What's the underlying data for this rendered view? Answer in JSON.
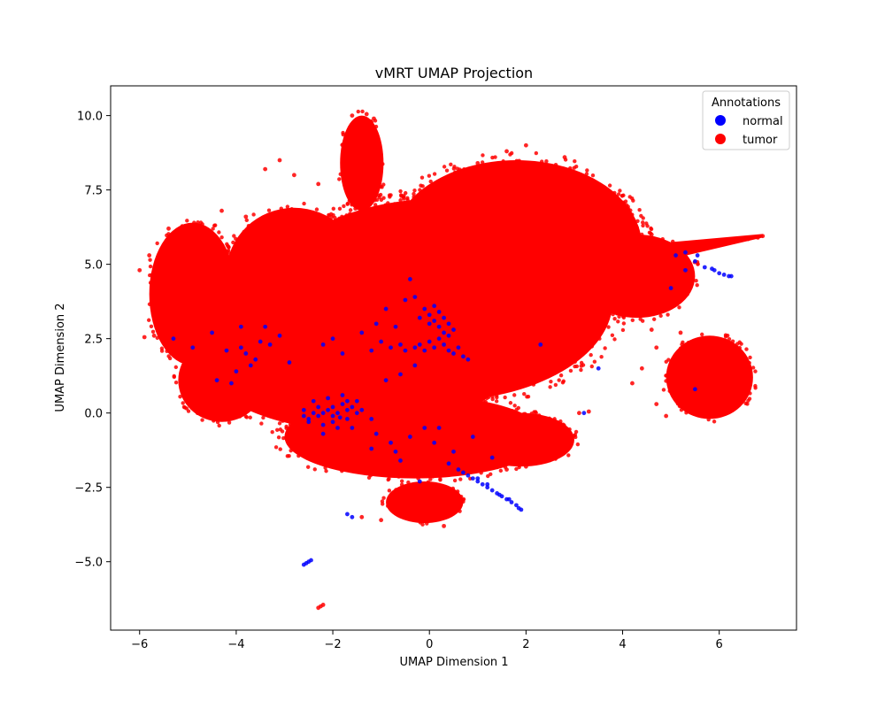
{
  "chart_data": {
    "type": "scatter",
    "title": "vMRT UMAP Projection",
    "xlabel": "UMAP Dimension 1",
    "ylabel": "UMAP Dimension 2",
    "xlim": [
      -6.6,
      7.6
    ],
    "ylim": [
      -7.3,
      11.0
    ],
    "x_ticks": [
      -6,
      -4,
      -2,
      0,
      2,
      4,
      6
    ],
    "y_ticks": [
      -5.0,
      -2.5,
      0.0,
      2.5,
      5.0,
      7.5,
      10.0
    ],
    "x_tick_labels": [
      "−6",
      "−4",
      "−2",
      "0",
      "2",
      "4",
      "6"
    ],
    "y_tick_labels": [
      "−5.0",
      "−2.5",
      "0.0",
      "2.5",
      "5.0",
      "7.5",
      "10.0"
    ],
    "grid": false,
    "legend": {
      "title": "Annotations",
      "placement": "top-right",
      "entries": [
        "normal",
        "tumor"
      ]
    },
    "series": [
      {
        "name": "normal",
        "color": "#0000ff",
        "points": [
          [
            -3.8,
            2.0
          ],
          [
            -3.6,
            1.8
          ],
          [
            -3.9,
            2.2
          ],
          [
            -3.5,
            2.4
          ],
          [
            -4.2,
            2.1
          ],
          [
            -4.5,
            2.7
          ],
          [
            -3.3,
            2.3
          ],
          [
            -3.7,
            1.6
          ],
          [
            -4.0,
            1.4
          ],
          [
            -4.4,
            1.1
          ],
          [
            -5.3,
            2.5
          ],
          [
            -4.9,
            2.2
          ],
          [
            -3.4,
            2.9
          ],
          [
            -3.9,
            2.9
          ],
          [
            -2.9,
            1.7
          ],
          [
            -3.1,
            2.6
          ],
          [
            -4.1,
            1.0
          ],
          [
            -2.0,
            2.5
          ],
          [
            -2.2,
            2.3
          ],
          [
            -1.8,
            2.0
          ],
          [
            -2.6,
            -0.1
          ],
          [
            -2.5,
            -0.2
          ],
          [
            -2.4,
            0.0
          ],
          [
            -2.3,
            -0.1
          ],
          [
            -2.2,
            0.0
          ],
          [
            -2.1,
            0.1
          ],
          [
            -2.0,
            0.2
          ],
          [
            -1.9,
            0.0
          ],
          [
            -1.8,
            0.3
          ],
          [
            -1.7,
            0.1
          ],
          [
            -1.6,
            0.2
          ],
          [
            -1.5,
            0.0
          ],
          [
            -1.4,
            0.1
          ],
          [
            -2.0,
            -0.3
          ],
          [
            -1.9,
            -0.5
          ],
          [
            -2.2,
            -0.4
          ],
          [
            -1.7,
            -0.2
          ],
          [
            -2.4,
            0.4
          ],
          [
            -2.1,
            0.5
          ],
          [
            -1.8,
            0.6
          ],
          [
            -2.5,
            -0.3
          ],
          [
            -2.2,
            -0.7
          ],
          [
            -1.6,
            -0.5
          ],
          [
            -1.2,
            -0.2
          ],
          [
            -1.5,
            0.4
          ],
          [
            -1.7,
            0.4
          ],
          [
            -2.3,
            0.2
          ],
          [
            -2.6,
            0.1
          ],
          [
            -2.0,
            -0.1
          ],
          [
            -1.85,
            -0.15
          ],
          [
            -0.3,
            2.2
          ],
          [
            -0.2,
            2.3
          ],
          [
            -0.1,
            2.1
          ],
          [
            0.0,
            2.4
          ],
          [
            0.1,
            2.2
          ],
          [
            0.2,
            2.5
          ],
          [
            0.3,
            2.3
          ],
          [
            0.4,
            2.1
          ],
          [
            0.5,
            2.0
          ],
          [
            0.6,
            2.2
          ],
          [
            0.7,
            1.9
          ],
          [
            0.8,
            1.8
          ],
          [
            -0.5,
            2.1
          ],
          [
            -0.6,
            2.3
          ],
          [
            -0.8,
            2.2
          ],
          [
            -1.0,
            2.4
          ],
          [
            -1.2,
            2.1
          ],
          [
            0.3,
            2.7
          ],
          [
            0.2,
            2.9
          ],
          [
            0.1,
            3.1
          ],
          [
            0.0,
            3.3
          ],
          [
            -0.1,
            3.5
          ],
          [
            0.2,
            3.4
          ],
          [
            0.3,
            3.2
          ],
          [
            0.4,
            3.0
          ],
          [
            0.5,
            2.8
          ],
          [
            0.4,
            2.6
          ],
          [
            -0.2,
            3.2
          ],
          [
            0.1,
            3.6
          ],
          [
            0.0,
            3.0
          ],
          [
            -0.3,
            3.9
          ],
          [
            -0.4,
            4.5
          ],
          [
            -0.5,
            3.8
          ],
          [
            -0.9,
            3.5
          ],
          [
            -1.1,
            3.0
          ],
          [
            -1.4,
            2.7
          ],
          [
            -0.7,
            2.9
          ],
          [
            -0.6,
            1.3
          ],
          [
            -0.9,
            1.1
          ],
          [
            -0.3,
            1.6
          ],
          [
            -0.8,
            -1.0
          ],
          [
            -0.6,
            -1.6
          ],
          [
            -0.4,
            -0.8
          ],
          [
            -1.2,
            -1.2
          ],
          [
            0.1,
            -1.0
          ],
          [
            -1.1,
            -0.7
          ],
          [
            -0.7,
            -1.3
          ],
          [
            -0.2,
            -2.3
          ],
          [
            0.2,
            -0.5
          ],
          [
            0.5,
            -1.3
          ],
          [
            0.4,
            -1.7
          ],
          [
            0.6,
            -1.9
          ],
          [
            0.8,
            -2.1
          ],
          [
            0.9,
            -2.2
          ],
          [
            1.0,
            -2.3
          ],
          [
            1.1,
            -2.4
          ],
          [
            1.2,
            -2.5
          ],
          [
            1.3,
            -2.6
          ],
          [
            1.4,
            -2.7
          ],
          [
            1.5,
            -2.8
          ],
          [
            1.6,
            -2.9
          ],
          [
            1.7,
            -3.0
          ],
          [
            1.8,
            -3.1
          ],
          [
            1.9,
            -3.25
          ],
          [
            1.0,
            -2.2
          ],
          [
            1.2,
            -2.4
          ],
          [
            1.45,
            -2.75
          ],
          [
            1.65,
            -2.9
          ],
          [
            1.85,
            -3.2
          ],
          [
            0.7,
            -2.0
          ],
          [
            -1.7,
            -3.4
          ],
          [
            -1.6,
            -3.5
          ],
          [
            -2.55,
            -5.05
          ],
          [
            -2.5,
            -5.0
          ],
          [
            -2.45,
            -4.95
          ],
          [
            -2.6,
            -5.1
          ],
          [
            5.0,
            4.2
          ],
          [
            5.3,
            4.8
          ],
          [
            5.5,
            5.1
          ],
          [
            5.7,
            4.9
          ],
          [
            5.9,
            4.8
          ],
          [
            6.0,
            4.7
          ],
          [
            6.1,
            4.65
          ],
          [
            6.2,
            4.6
          ],
          [
            6.25,
            4.6
          ],
          [
            5.85,
            4.85
          ],
          [
            5.55,
            5.3
          ],
          [
            5.3,
            5.4
          ],
          [
            5.1,
            5.3
          ],
          [
            5.5,
            0.8
          ],
          [
            3.2,
            0.0
          ],
          [
            2.3,
            2.3
          ],
          [
            3.5,
            1.5
          ],
          [
            1.3,
            -1.5
          ],
          [
            0.9,
            -0.8
          ],
          [
            -0.1,
            -0.5
          ]
        ]
      },
      {
        "name": "tumor",
        "color": "#ff0000",
        "regions": [
          {
            "center": [
              0.2,
              3.8
            ],
            "radii": [
              3.6,
              3.4
            ]
          },
          {
            "center": [
              1.8,
              5.6
            ],
            "radii": [
              2.6,
              2.9
            ]
          },
          {
            "center": [
              -1.5,
              2.0
            ],
            "radii": [
              3.3,
              2.6
            ]
          },
          {
            "center": [
              -2.8,
              4.7
            ],
            "radii": [
              1.4,
              2.2
            ]
          },
          {
            "center": [
              -4.9,
              4.0
            ],
            "radii": [
              0.9,
              2.4
            ]
          },
          {
            "center": [
              -4.3,
              1.1
            ],
            "radii": [
              0.9,
              1.4
            ]
          },
          {
            "center": [
              -1.4,
              8.4
            ],
            "radii": [
              0.45,
              1.6
            ]
          },
          {
            "center": [
              -0.3,
              -0.8
            ],
            "radii": [
              2.7,
              1.4
            ]
          },
          {
            "center": [
              -0.1,
              -3.0
            ],
            "radii": [
              0.8,
              0.7
            ]
          },
          {
            "center": [
              1.9,
              -0.9
            ],
            "radii": [
              1.1,
              0.9
            ]
          },
          {
            "center": [
              5.8,
              1.2
            ],
            "radii": [
              0.9,
              1.4
            ]
          },
          {
            "center": [
              4.3,
              4.6
            ],
            "radii": [
              1.2,
              1.4
            ]
          }
        ],
        "points": [
          [
            6.9,
            5.95
          ],
          [
            6.8,
            5.9
          ],
          [
            6.6,
            5.85
          ],
          [
            6.4,
            5.8
          ],
          [
            6.2,
            5.75
          ],
          [
            6.0,
            5.7
          ],
          [
            5.8,
            5.6
          ],
          [
            5.6,
            5.5
          ],
          [
            5.4,
            5.45
          ],
          [
            5.2,
            5.4
          ],
          [
            5.0,
            5.3
          ],
          [
            4.8,
            5.25
          ],
          [
            4.6,
            5.2
          ],
          [
            4.4,
            5.15
          ],
          [
            -5.9,
            2.55
          ],
          [
            -5.7,
            2.6
          ],
          [
            -5.5,
            2.7
          ],
          [
            -5.3,
            2.8
          ],
          [
            -4.8,
            0.0
          ],
          [
            -4.5,
            -0.1
          ],
          [
            -1.6,
            10.0
          ],
          [
            -1.3,
            10.05
          ],
          [
            -1.15,
            9.9
          ],
          [
            -1.55,
            9.8
          ],
          [
            -2.25,
            -6.5
          ],
          [
            -2.2,
            -6.45
          ],
          [
            -2.3,
            -6.55
          ],
          [
            3.1,
            8.0
          ],
          [
            3.2,
            7.95
          ],
          [
            3.5,
            7.2
          ],
          [
            3.1,
            0.0
          ],
          [
            3.3,
            0.05
          ],
          [
            2.8,
            -0.8
          ],
          [
            2.5,
            -0.9
          ],
          [
            2.0,
            -1.8
          ],
          [
            1.6,
            -1.9
          ],
          [
            1.8,
            -1.6
          ],
          [
            0.3,
            -3.8
          ],
          [
            -1.0,
            -3.6
          ],
          [
            -1.4,
            -3.5
          ],
          [
            4.7,
            2.2
          ],
          [
            4.4,
            1.5
          ],
          [
            4.2,
            1.0
          ],
          [
            4.6,
            2.8
          ],
          [
            5.2,
            2.7
          ],
          [
            6.1,
            1.4
          ],
          [
            6.2,
            0.7
          ],
          [
            5.9,
            0.0
          ],
          [
            4.7,
            0.3
          ],
          [
            4.9,
            -0.1
          ],
          [
            -3.4,
            8.2
          ],
          [
            -3.1,
            8.5
          ],
          [
            -2.8,
            8.0
          ],
          [
            -2.3,
            7.7
          ],
          [
            -3.8,
            6.6
          ],
          [
            -4.3,
            6.8
          ],
          [
            -5.4,
            6.2
          ],
          [
            -5.8,
            5.3
          ],
          [
            -6.0,
            4.8
          ],
          [
            -5.0,
            5.9
          ],
          [
            2.0,
            9.0
          ],
          [
            1.6,
            8.8
          ],
          [
            1.0,
            8.4
          ],
          [
            0.4,
            7.8
          ],
          [
            2.8,
            8.6
          ],
          [
            3.4,
            7.8
          ],
          [
            4.0,
            7.0
          ],
          [
            4.6,
            6.0
          ],
          [
            3.0,
            5.2
          ],
          [
            2.6,
            3.1
          ]
        ]
      }
    ]
  }
}
